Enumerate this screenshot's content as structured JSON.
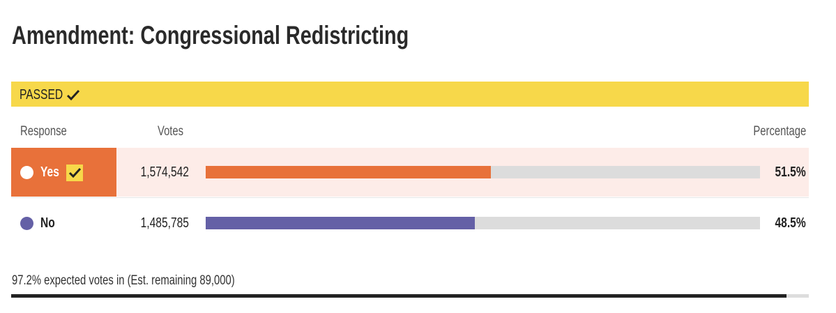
{
  "header": {
    "title": "Amendment: Congressional Redistricting"
  },
  "status": {
    "label": "PASSED",
    "color": "#f7d84a"
  },
  "table": {
    "columns": [
      "Response",
      "Votes",
      "Percentage"
    ],
    "rows": [
      {
        "name": "Yes",
        "votes": "1,574,542",
        "percentage": 51.5,
        "percentage_label": "51.5%",
        "color": "#e8713a",
        "winner": true
      },
      {
        "name": "No",
        "votes": "1,485,785",
        "percentage": 48.5,
        "percentage_label": "48.5%",
        "color": "#6460a6",
        "winner": false
      }
    ]
  },
  "footer": {
    "text": "97.2% expected votes in (Est. remaining 89,000)",
    "expected_percentage": 97.2
  }
}
